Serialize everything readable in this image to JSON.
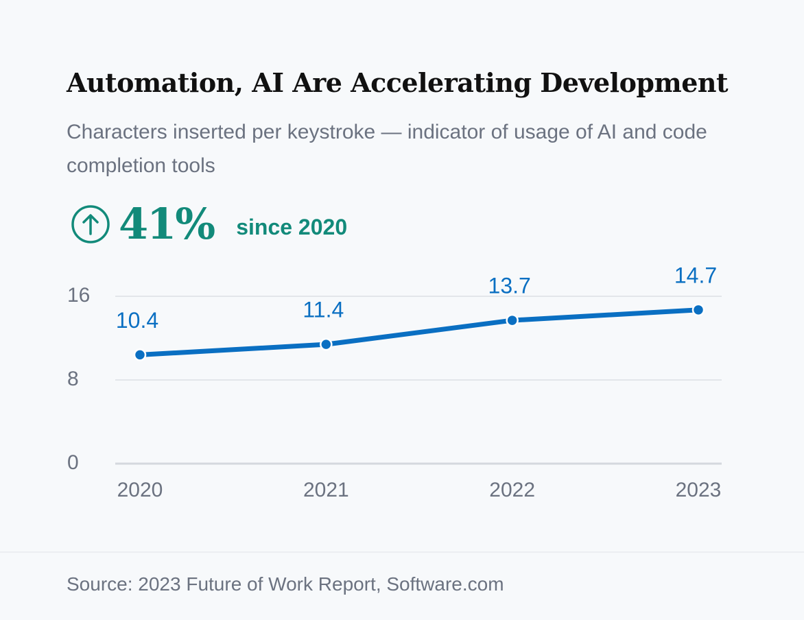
{
  "chart_data": {
    "type": "line",
    "title": "Automation, AI Are Accelerating Development",
    "subtitle": "Characters inserted per keystroke — indicator of usage of AI and code completion tools",
    "highlight": "41%",
    "highlight_note": "since 2020",
    "categories": [
      "2020",
      "2021",
      "2022",
      "2023"
    ],
    "series": [
      {
        "name": "Characters inserted per keystroke",
        "color": "#0a6fc2",
        "values": [
          10.4,
          11.4,
          13.7,
          14.7
        ]
      }
    ],
    "ylim": [
      0,
      16
    ],
    "yticks": [
      0,
      8,
      16
    ],
    "grid": true,
    "source": "Source: 2023 Future of Work Report, Software.com"
  }
}
